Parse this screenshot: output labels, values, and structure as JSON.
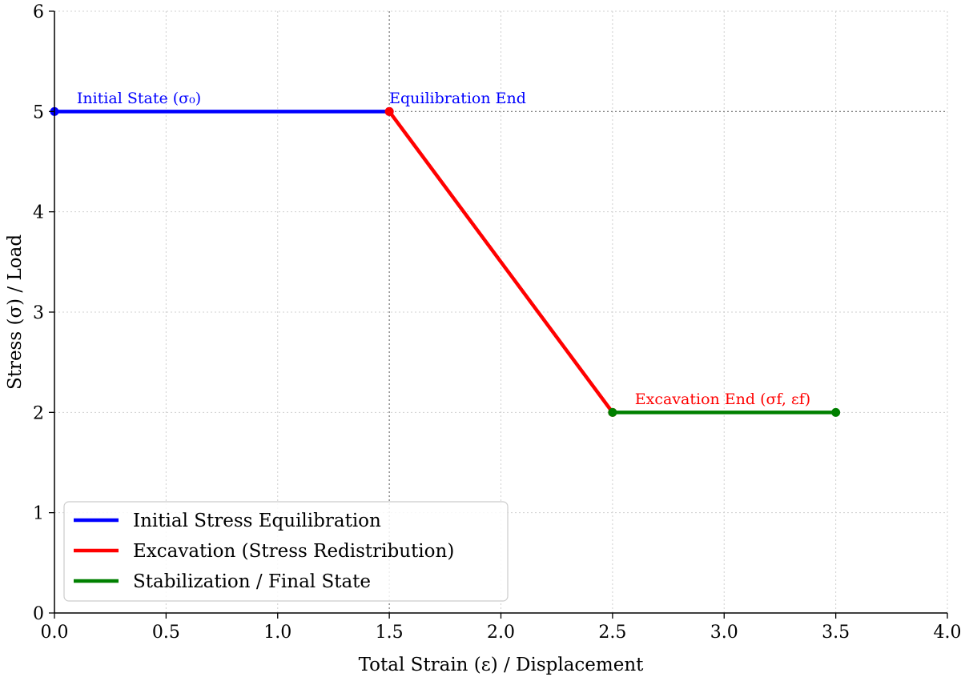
{
  "chart_data": {
    "type": "line",
    "xlabel": "Total Strain (ε) / Displacement",
    "ylabel": "Stress (σ) / Load",
    "xlim": [
      0.0,
      4.0
    ],
    "ylim": [
      0,
      6
    ],
    "xticks": [
      "0.0",
      "0.5",
      "1.0",
      "1.5",
      "2.0",
      "2.5",
      "3.0",
      "3.5",
      "4.0"
    ],
    "yticks": [
      "0",
      "1",
      "2",
      "3",
      "4",
      "5",
      "6"
    ],
    "grid": true,
    "legend_position": "lower-left",
    "series": [
      {
        "name": "Initial Stress Equilibration",
        "color": "#0000ff",
        "x": [
          0.0,
          1.5
        ],
        "y": [
          5,
          5
        ]
      },
      {
        "name": "Excavation (Stress Redistribution)",
        "color": "#ff0000",
        "x": [
          1.5,
          2.5
        ],
        "y": [
          5,
          2
        ]
      },
      {
        "name": "Stabilization / Final State",
        "color": "#008000",
        "x": [
          2.5,
          3.5
        ],
        "y": [
          2,
          2
        ]
      }
    ],
    "reference_lines": [
      {
        "orientation": "vertical",
        "value": 1.5
      },
      {
        "orientation": "horizontal",
        "value": 5
      }
    ],
    "annotations": [
      {
        "text": "Initial State (σ₀)",
        "x": 0.1,
        "y": 5.1,
        "color": "#0000ff"
      },
      {
        "text": "Equilibration End",
        "x": 1.5,
        "y": 5.1,
        "color": "#0000ff"
      },
      {
        "text": "Excavation End (σf, εf)",
        "x": 2.6,
        "y": 2.1,
        "color": "#ff0000"
      }
    ]
  }
}
